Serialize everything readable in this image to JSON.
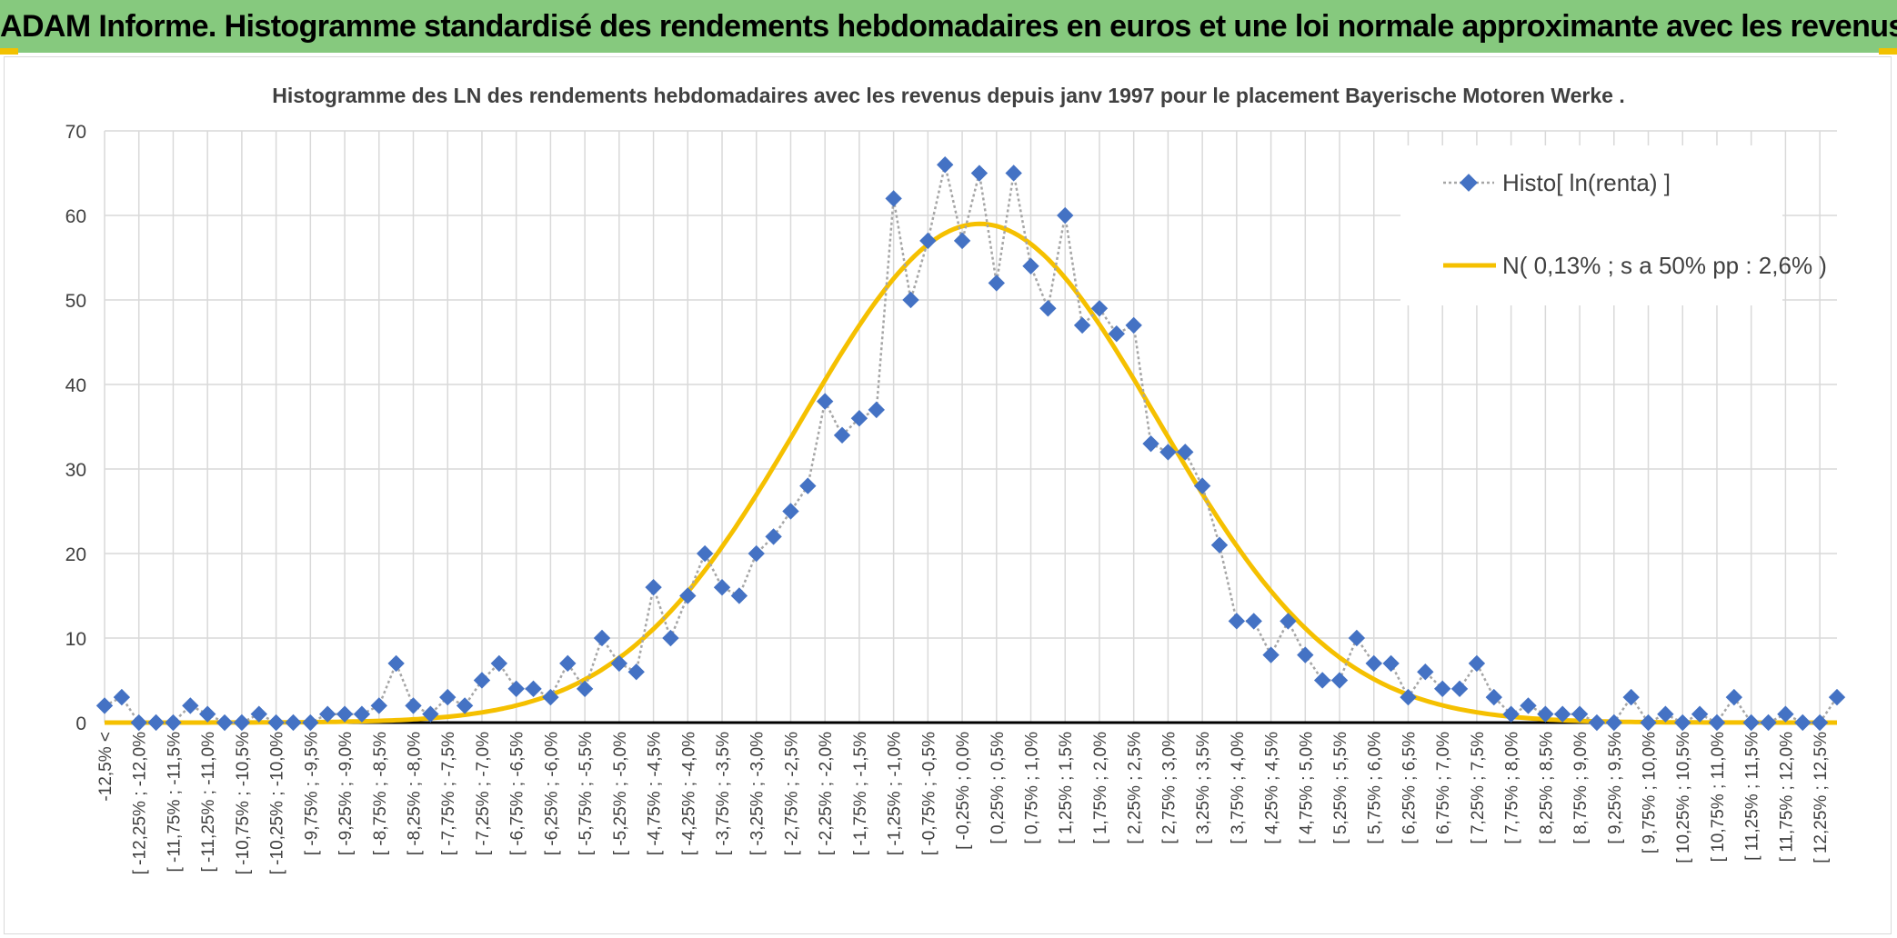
{
  "page_title": "ADAM Informe. Histogramme standardisé des rendements hebdomadaires en euros et une loi normale approximante avec les revenus connus distribués",
  "colors": {
    "title_bar": "#86c97e",
    "histogram": "#4472c4",
    "histogram_line": "#a6a6a6",
    "normal_curve": "#f5c000",
    "grid": "#d9d9d9",
    "axis": "#000000"
  },
  "chart_data": {
    "type": "line",
    "title": "Histogramme des LN des rendements hebdomadaires avec les revenus depuis janv 1997 pour le placement Bayerische  Motoren Werke .",
    "xlabel": "",
    "ylabel": "",
    "ylim": [
      0,
      70
    ],
    "yticks": [
      0,
      10,
      20,
      30,
      40,
      50,
      60,
      70
    ],
    "grid": true,
    "legend_position": "top-right",
    "x_tick_labels": [
      "-12,5% <",
      "[ -12,25% ; -12,0%",
      "[ -11,75% ; -11,5%",
      "[ -11,25% ; -11,0%",
      "[ -10,75% ; -10,5%",
      "[ -10,25% ; -10,0%",
      "[ -9,75% ; -9,5%",
      "[ -9,25% ; -9,0%",
      "[ -8,75% ; -8,5%",
      "[ -8,25% ; -8,0%",
      "[ -7,75% ; -7,5%",
      "[ -7,25% ; -7,0%",
      "[ -6,75% ; -6,5%",
      "[ -6,25% ; -6,0%",
      "[ -5,75% ; -5,5%",
      "[ -5,25% ; -5,0%",
      "[ -4,75% ; -4,5%",
      "[ -4,25% ; -4,0%",
      "[ -3,75% ; -3,5%",
      "[ -3,25% ; -3,0%",
      "[ -2,75% ; -2,5%",
      "[ -2,25% ; -2,0%",
      "[ -1,75% ; -1,5%",
      "[ -1,25% ; -1,0%",
      "[ -0,75% ; -0,5%",
      "[ -0,25% ; 0,0%",
      "[ 0,25% ; 0,5%",
      "[ 0,75% ; 1,0%",
      "[ 1,25% ; 1,5%",
      "[ 1,75% ; 2,0%",
      "[ 2,25% ; 2,5%",
      "[ 2,75% ; 3,0%",
      "[ 3,25% ; 3,5%",
      "[ 3,75% ; 4,0%",
      "[ 4,25% ; 4,5%",
      "[ 4,75% ; 5,0%",
      "[ 5,25% ; 5,5%",
      "[ 5,75% ; 6,0%",
      "[ 6,25% ; 6,5%",
      "[ 6,75% ; 7,0%",
      "[ 7,25% ; 7,5%",
      "[ 7,75% ; 8,0%",
      "[ 8,25% ; 8,5%",
      "[ 8,75% ; 9,0%",
      "[ 9,25% ; 9,5%",
      "[ 9,75% ; 10,0%",
      "[ 10,25% ; 10,5%",
      "[ 10,75% ; 11,0%",
      "[ 11,25% ; 11,5%",
      "[ 11,75% ; 12,0%",
      "[ 12,25% ; 12,5%"
    ],
    "series": [
      {
        "name": "Histo[ ln(renta) ]",
        "values": [
          2,
          3,
          0,
          0,
          0,
          2,
          1,
          0,
          0,
          1,
          0,
          0,
          0,
          1,
          1,
          1,
          2,
          7,
          2,
          1,
          3,
          2,
          5,
          7,
          4,
          4,
          3,
          7,
          4,
          10,
          7,
          6,
          16,
          10,
          15,
          20,
          16,
          15,
          20,
          22,
          25,
          28,
          38,
          34,
          36,
          37,
          62,
          50,
          57,
          66,
          57,
          65,
          52,
          65,
          54,
          49,
          60,
          47,
          49,
          46,
          47,
          33,
          32,
          32,
          28,
          21,
          12,
          12,
          8,
          12,
          8,
          5,
          5,
          10,
          7,
          7,
          3,
          6,
          4,
          4,
          7,
          3,
          1,
          2,
          1,
          1,
          1,
          0,
          0,
          3,
          0,
          1,
          0,
          1,
          0,
          3,
          0,
          0,
          1,
          0,
          0,
          3
        ]
      },
      {
        "name": "N( 0,13% ; s a 50% pp : 2,6% )",
        "mean": 0.13,
        "sd": 2.6,
        "peak": 59
      }
    ]
  }
}
